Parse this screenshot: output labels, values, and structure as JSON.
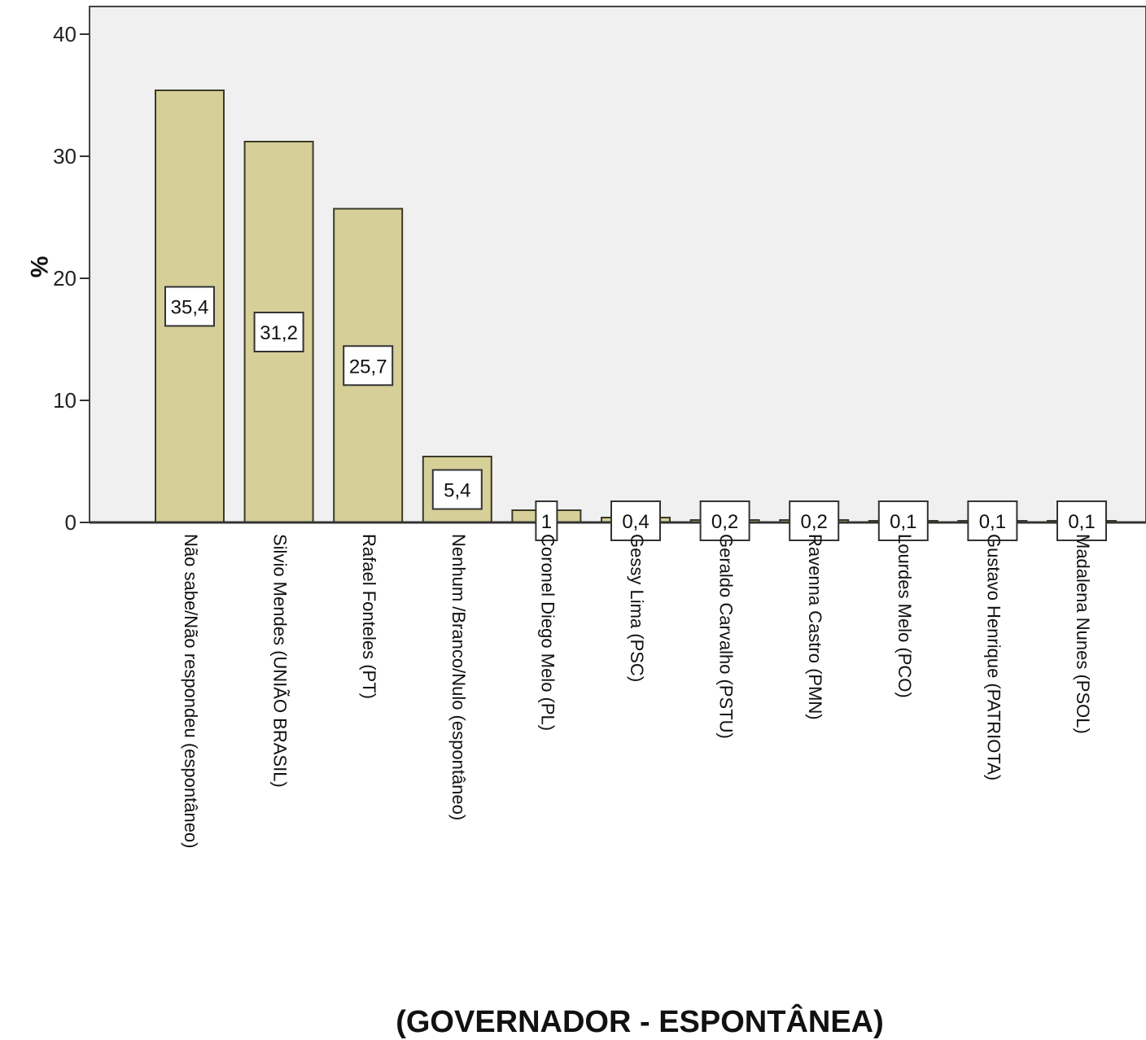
{
  "chart_data": {
    "type": "bar",
    "title": "",
    "xlabel": "(GOVERNADOR - ESPONTÂNEA)",
    "ylabel": "%",
    "ylim": [
      0,
      42
    ],
    "yticks": [
      "0",
      "10",
      "20",
      "30",
      "40"
    ],
    "grid": false,
    "categories": [
      "Não sabe/Não respondeu (espontâneo)",
      "Silvio Mendes (UNIÃO BRASIL)",
      "Rafael Fonteles (PT)",
      "Nenhum /Branco/Nulo (espontâneo)",
      "Coronel Diego Melo (PL)",
      "Gessy Lima (PSC)",
      "Geraldo Carvalho (PSTU)",
      "Ravenna Castro (PMN)",
      "Lourdes Melo (PCO)",
      "Gustavo Henrique (PATRIOTA)",
      "Madalena Nunes (PSOL)"
    ],
    "values": [
      35.4,
      31.2,
      25.7,
      5.4,
      1,
      0.4,
      0.2,
      0.2,
      0.1,
      0.1,
      0.1
    ],
    "value_labels": [
      "35,4",
      "31,2",
      "25,7",
      "5,4",
      "1",
      "0,4",
      "0,2",
      "0,2",
      "0,1",
      "0,1",
      "0,1"
    ],
    "colors": {
      "bar_fill": "#d6cf98",
      "bar_stroke": "#3b3a28",
      "plot_background": "#f0f0f0",
      "axis": "#333333"
    }
  }
}
